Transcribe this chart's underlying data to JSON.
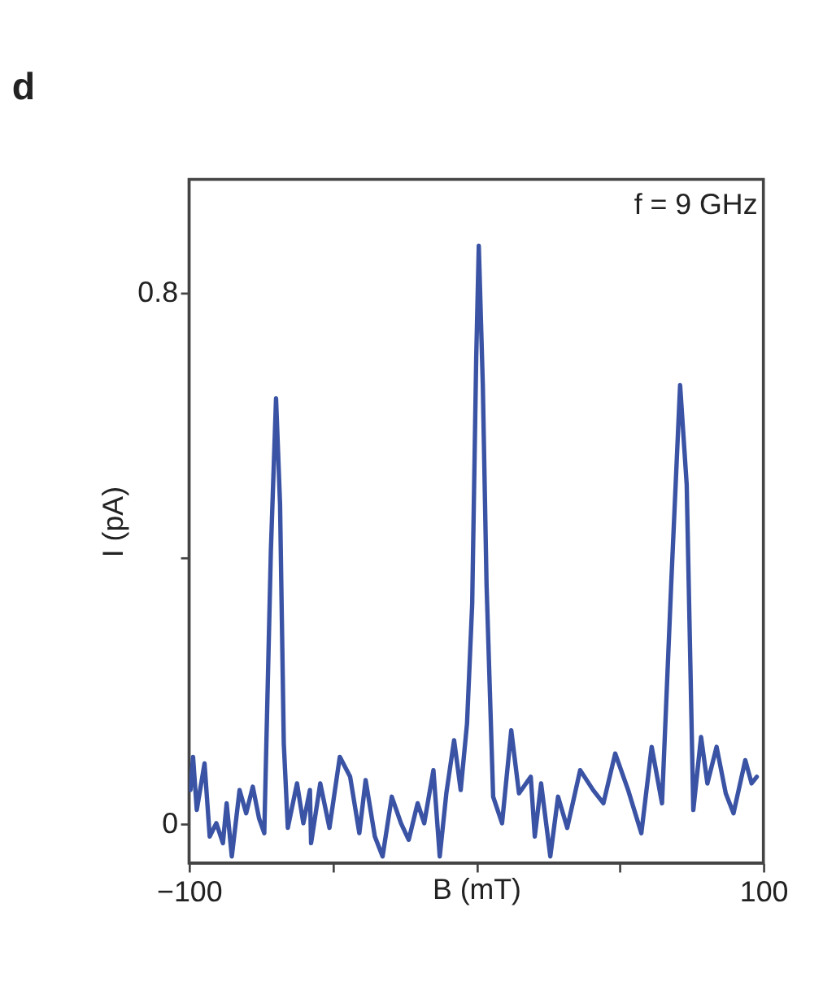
{
  "chart_data": {
    "type": "line",
    "title": "d",
    "xlabel": "B (mT)",
    "ylabel": "I (pA)",
    "annotations": [
      "f = 9 GHz"
    ],
    "x": [
      -99.5,
      -98.6,
      -97.3,
      -94.6,
      -92.8,
      -90.5,
      -88.2,
      -86.9,
      -85.1,
      -82.4,
      -80.1,
      -77.8,
      -75.6,
      -73.8,
      -71.5,
      -69.7,
      -68.3,
      -67.0,
      -65.6,
      -62.4,
      -60.2,
      -57.9,
      -57.5,
      -54.3,
      -51.1,
      -47.5,
      -43.9,
      -40.7,
      -38.5,
      -35.3,
      -32.6,
      -29.4,
      -26.2,
      -23.5,
      -20.4,
      -18.1,
      -14.9,
      -12.7,
      -10.4,
      -7.7,
      -5.4,
      -3.2,
      -1.4,
      0,
      0.9,
      2.3,
      3.6,
      5.9,
      9.0,
      12.2,
      14.9,
      19.0,
      20.4,
      22.6,
      25.8,
      28.5,
      31.7,
      36.2,
      40.7,
      44.3,
      48.4,
      52.9,
      57.5,
      61.1,
      64.7,
      67.9,
      71.0,
      73.3,
      75.6,
      78.3,
      80.5,
      83.7,
      86.9,
      89.6,
      93.7,
      95.9,
      97.7
    ],
    "series": [
      {
        "color": "#3a53a4",
        "values": [
          0.05,
          0.1,
          0.02,
          0.09,
          -0.02,
          0.0,
          -0.03,
          0.03,
          -0.05,
          0.05,
          0.015,
          0.055,
          0.007,
          -0.015,
          0.41,
          0.64,
          0.48,
          0.12,
          -0.007,
          0.06,
          0.0,
          0.05,
          -0.03,
          0.06,
          -0.007,
          0.1,
          0.07,
          -0.015,
          0.065,
          -0.02,
          -0.05,
          0.04,
          0.0,
          -0.025,
          0.03,
          0.0,
          0.08,
          -0.05,
          0.045,
          0.125,
          0.05,
          0.15,
          0.33,
          0.7,
          0.87,
          0.66,
          0.36,
          0.04,
          0.0,
          0.14,
          0.045,
          0.07,
          -0.02,
          0.06,
          -0.05,
          0.04,
          -0.007,
          0.08,
          0.05,
          0.03,
          0.105,
          0.05,
          -0.015,
          0.115,
          0.03,
          0.36,
          0.66,
          0.51,
          0.02,
          0.13,
          0.06,
          0.115,
          0.045,
          0.015,
          0.095,
          0.06,
          0.07
        ]
      }
    ],
    "xlim": [
      -100,
      100
    ],
    "xticks": [
      -100,
      {
        "value": -50,
        "label": null
      },
      {
        "value": 0,
        "label": null
      },
      {
        "value": 50,
        "label": null
      },
      100
    ],
    "ylim": [
      -0.06,
      0.97
    ],
    "yticks": [
      0,
      {
        "value": 0.4,
        "label": null
      },
      0.8
    ],
    "grid": false,
    "marker": "none",
    "line_style": "solid"
  }
}
